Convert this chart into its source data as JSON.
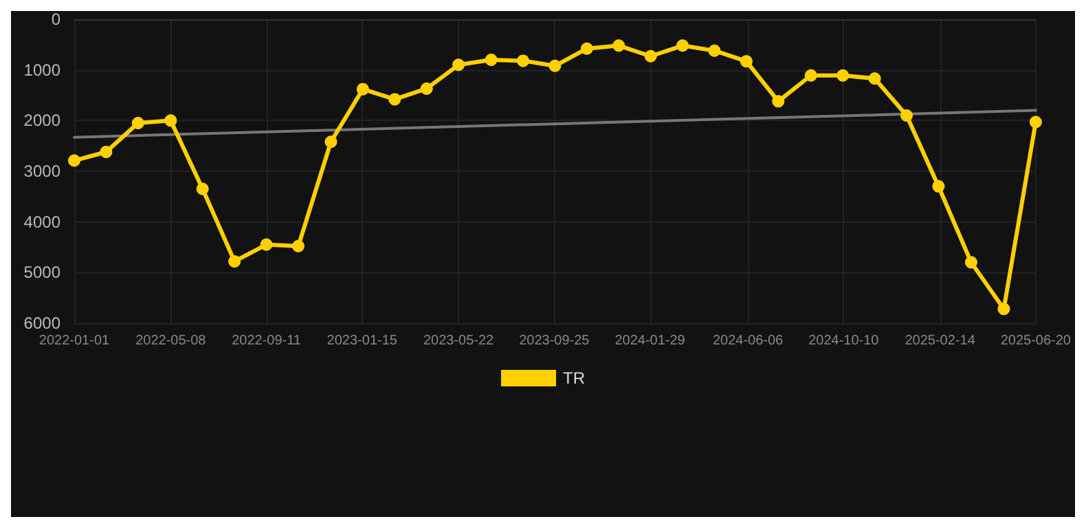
{
  "chart_data": {
    "type": "line",
    "x": [
      "2022-01-01",
      "2022-02-12",
      "2022-03-26",
      "2022-05-08",
      "2022-06-19",
      "2022-07-31",
      "2022-09-11",
      "2022-10-23",
      "2022-12-05",
      "2023-01-16",
      "2023-02-27",
      "2023-04-10",
      "2023-05-22",
      "2023-07-04",
      "2023-08-15",
      "2023-09-26",
      "2023-11-07",
      "2023-12-19",
      "2024-01-30",
      "2024-03-12",
      "2024-04-23",
      "2024-06-04",
      "2024-07-16",
      "2024-08-28",
      "2024-10-09",
      "2024-11-20",
      "2025-01-01",
      "2025-02-12",
      "2025-03-27",
      "2025-05-09",
      "2025-06-20"
    ],
    "series": [
      {
        "name": "TR",
        "color": "#ffd000",
        "marker": "circle",
        "values": [
          2790,
          2620,
          2050,
          2000,
          3350,
          4780,
          4450,
          4480,
          2420,
          1380,
          1580,
          1370,
          900,
          800,
          820,
          920,
          580,
          520,
          730,
          520,
          620,
          830,
          1620,
          1110,
          1110,
          1170,
          1900,
          3300,
          4800,
          5720,
          2030
        ]
      },
      {
        "type": "line",
        "color": "#777777",
        "marker": "none",
        "x": [
          "2022-01-01",
          "2025-06-20"
        ],
        "values": [
          2330,
          1800
        ]
      }
    ],
    "xlim": [
      "2022-01-01",
      "2025-06-20"
    ],
    "xticks": [
      "2022-01-01",
      "2022-05-08",
      "2022-09-11",
      "2023-01-15",
      "2023-05-22",
      "2023-09-25",
      "2024-01-29",
      "2024-06-06",
      "2024-10-10",
      "2025-02-14",
      "2025-06-20"
    ],
    "ylim": [
      6000,
      0
    ],
    "yticks": [
      0,
      1000,
      2000,
      3000,
      4000,
      5000,
      6000
    ],
    "grid": true,
    "legend": "bottom",
    "line_style": "solid"
  }
}
